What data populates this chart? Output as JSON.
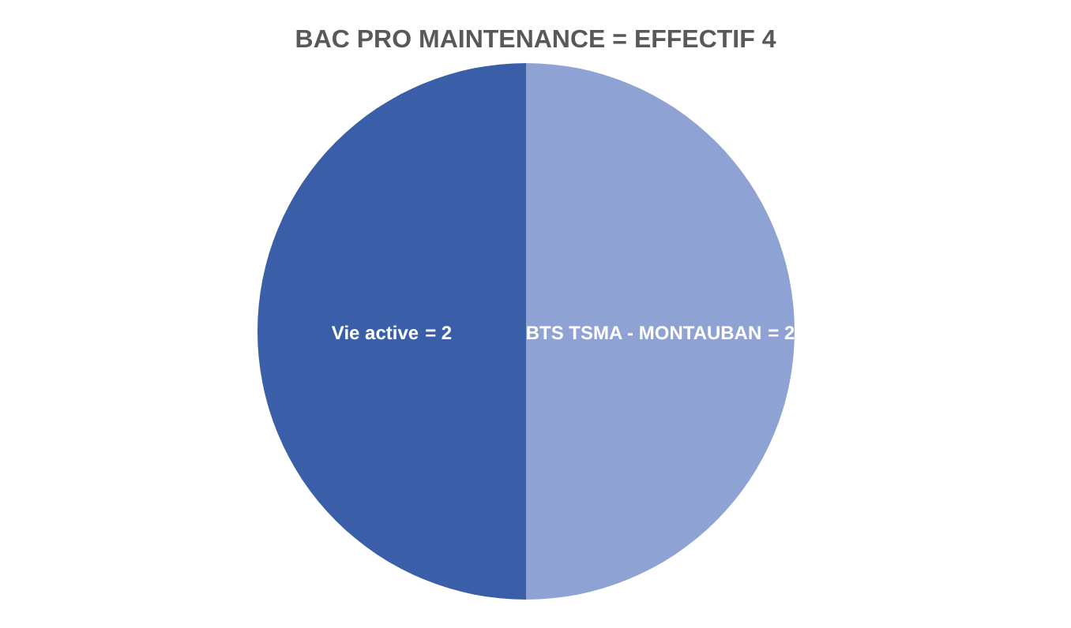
{
  "chart_data": {
    "type": "pie",
    "title": "BAC PRO MAINTENANCE = EFFECTIF 4",
    "categories": [
      "Vie active",
      "BTS TSMA - MONTAUBAN"
    ],
    "values": [
      2,
      2
    ],
    "value_labels": [
      "= 2",
      "= 2"
    ],
    "colors": [
      "#3a5fa8",
      "#8fa2d4"
    ]
  }
}
